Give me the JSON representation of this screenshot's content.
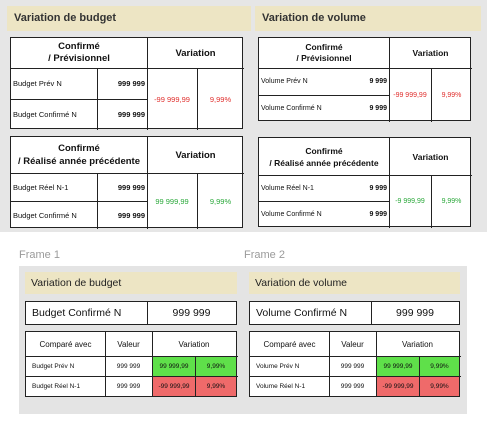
{
  "top": {
    "budget": {
      "header": "Variation de budget",
      "t1": {
        "head_left": "Confirmé\n/ Prévisionnel",
        "head_right": "Variation",
        "row1_label": "Budget Prév N",
        "row1_val": "999 999",
        "row2_label": "Budget Confirmé N",
        "row2_val": "999 999",
        "var_value": "-99 999,99",
        "var_pct": "9,99%"
      },
      "t2": {
        "head_left": "Confirmé\n/ Réalisé année précédente",
        "head_right": "Variation",
        "row1_label": "Budget Réel N-1",
        "row1_val": "999 999",
        "row2_label": "Budget Confirmé N",
        "row2_val": "999 999",
        "var_value": "99 999,99",
        "var_pct": "9,99%"
      }
    },
    "volume": {
      "header": "Variation de volume",
      "t1": {
        "head_left": "Confirmé\n/ Prévisionnel",
        "head_right": "Variation",
        "row1_label": "Volume Prév N",
        "row1_val": "9 999",
        "row2_label": "Volume Confirmé N",
        "row2_val": "9 999",
        "var_value": "-99 999,99",
        "var_pct": "9,99%"
      },
      "t2": {
        "head_left": "Confirmé\n/ Réalisé année précédente",
        "head_right": "Variation",
        "row1_label": "Volume Réel N-1",
        "row1_val": "9 999",
        "row2_label": "Volume Confirmé N",
        "row2_val": "9 999",
        "var_value": "-9 999,99",
        "var_pct": "9,99%"
      }
    }
  },
  "frame1": {
    "label": "Frame 1",
    "header": "Variation de budget",
    "confirmed_label": "Budget Confirmé N",
    "confirmed_val": "999 999",
    "col_compare": "Comparé avec",
    "col_value": "Valeur",
    "col_variation": "Variation",
    "row1": {
      "label": "Budget Prév N",
      "val": "999 999",
      "var": "99 999,99",
      "pct": "9,99%"
    },
    "row2": {
      "label": "Budget Réel N-1",
      "val": "999 999",
      "var": "-99 999,99",
      "pct": "9,99%"
    }
  },
  "frame2": {
    "label": "Frame 2",
    "header": "Variation de volume",
    "confirmed_label": "Volume Confirmé N",
    "confirmed_val": "999 999",
    "col_compare": "Comparé avec",
    "col_value": "Valeur",
    "col_variation": "Variation",
    "row1": {
      "label": "Volume Prév N",
      "val": "999 999",
      "var": "99 999,99",
      "pct": "9,99%"
    },
    "row2": {
      "label": "Volume Réel N-1",
      "val": "999 999",
      "var": "-99 999,99",
      "pct": "9,99%"
    }
  },
  "colors": {
    "header_bg": "#ede5c4",
    "panel_bg": "#e4e4e4",
    "positive_bg": "#5fe04a",
    "negative_bg": "#ef6a6a",
    "red_text": "#e0302e",
    "green_text": "#2aa83a"
  }
}
